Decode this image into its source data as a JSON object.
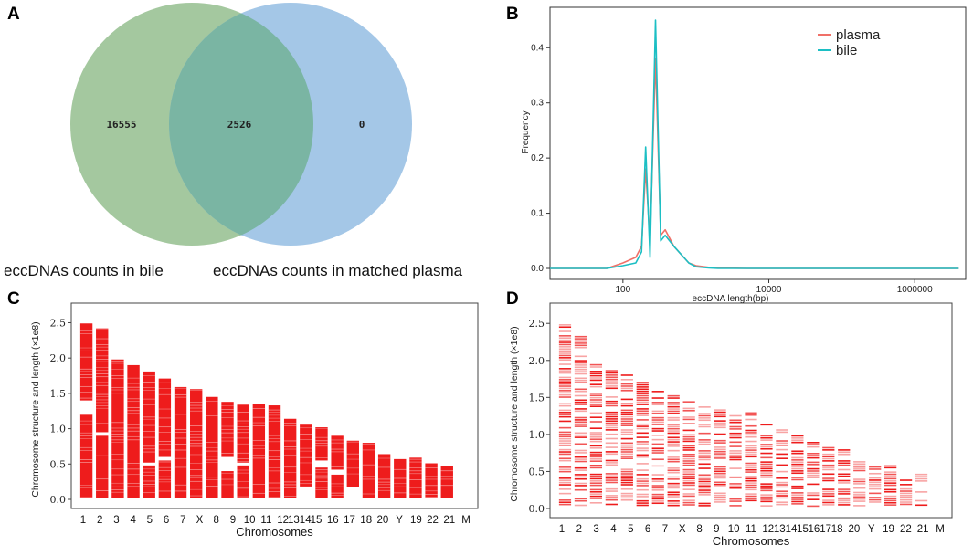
{
  "panels": {
    "a": {
      "letter": "A"
    },
    "b": {
      "letter": "B"
    },
    "c": {
      "letter": "C"
    },
    "d": {
      "letter": "D"
    }
  },
  "chart_data": [
    {
      "type": "venn",
      "title": "",
      "sets": [
        {
          "name": "eccDNAs counts in bile",
          "only": "16555",
          "color": "#9fc59a"
        },
        {
          "name": "eccDNAs counts in matched plasma",
          "only": "0",
          "color": "#9fc4e6"
        }
      ],
      "intersection": "2526",
      "overlap_color": "#7ab5a3"
    },
    {
      "type": "line",
      "xlabel": "eccDNA length(bp)",
      "ylabel": "Frequency",
      "xscale": "log10",
      "xlim": [
        10,
        5000000
      ],
      "ylim": [
        0,
        0.46
      ],
      "xticks": [
        {
          "v": 100,
          "label": "100"
        },
        {
          "v": 10000,
          "label": "10000"
        },
        {
          "v": 1000000,
          "label": "1000000"
        }
      ],
      "yticks": [
        {
          "v": 0,
          "label": "0.0"
        },
        {
          "v": 0.1,
          "label": "0.1"
        },
        {
          "v": 0.2,
          "label": "0.2"
        },
        {
          "v": 0.3,
          "label": "0.3"
        },
        {
          "v": 0.4,
          "label": "0.4"
        }
      ],
      "legend_position": "top-right",
      "series": [
        {
          "name": "plasma",
          "color": "#f07068",
          "x": [
            10,
            60,
            100,
            150,
            180,
            205,
            235,
            280,
            330,
            380,
            500,
            800,
            1000,
            1500,
            2000,
            5000,
            100000,
            4000000
          ],
          "y": [
            0,
            0,
            0.01,
            0.02,
            0.04,
            0.18,
            0.05,
            0.38,
            0.06,
            0.07,
            0.04,
            0.01,
            0.005,
            0.002,
            0.001,
            0,
            0,
            0
          ]
        },
        {
          "name": "bile",
          "color": "#1cbfc4",
          "x": [
            10,
            60,
            100,
            150,
            180,
            205,
            235,
            280,
            330,
            380,
            500,
            800,
            1000,
            1500,
            2000,
            5000,
            100000,
            4000000
          ],
          "y": [
            0,
            0,
            0.005,
            0.01,
            0.03,
            0.22,
            0.02,
            0.45,
            0.05,
            0.06,
            0.04,
            0.01,
            0.003,
            0.001,
            0,
            0,
            0,
            0
          ]
        }
      ]
    },
    {
      "type": "bar",
      "subtype": "chromosome-ideogram",
      "xlabel": "Chromosomes",
      "ylabel": "Chromosome structure and length (×1e8)",
      "ylim": [
        0,
        2.7
      ],
      "yticks": [
        {
          "v": 0,
          "label": "0.0"
        },
        {
          "v": 0.5,
          "label": "0.5"
        },
        {
          "v": 1.0,
          "label": "1.0"
        },
        {
          "v": 1.5,
          "label": "1.5"
        },
        {
          "v": 2.0,
          "label": "2.0"
        },
        {
          "v": 2.5,
          "label": "2.5"
        }
      ],
      "categories": [
        "1",
        "2",
        "3",
        "4",
        "5",
        "6",
        "7",
        "X",
        "8",
        "9",
        "10",
        "11",
        "12",
        "13",
        "14",
        "15",
        "16",
        "17",
        "18",
        "20",
        "Y",
        "19",
        "22",
        "21",
        "M"
      ],
      "tick_labels": [
        "1",
        "2",
        "3",
        "4",
        "5",
        "6",
        "7",
        "X",
        "8",
        "9",
        "10",
        "11",
        "12",
        "1314",
        "15",
        "16",
        "17",
        "18",
        "20",
        "Y",
        "19",
        "22",
        "21",
        "M"
      ],
      "values": [
        2.49,
        2.42,
        1.98,
        1.9,
        1.81,
        1.71,
        1.59,
        1.56,
        1.45,
        1.38,
        1.34,
        1.35,
        1.33,
        1.14,
        1.07,
        1.02,
        0.9,
        0.83,
        0.8,
        0.64,
        0.57,
        0.59,
        0.51,
        0.47,
        0.0
      ],
      "color": "#ee1c1c"
    },
    {
      "type": "bar",
      "subtype": "chromosome-ideogram",
      "xlabel": "Chromosomes",
      "ylabel": "Chromosome structure and length (×1e8)",
      "ylim": [
        0,
        2.7
      ],
      "yticks": [
        {
          "v": 0,
          "label": "0.0"
        },
        {
          "v": 0.5,
          "label": "0.5"
        },
        {
          "v": 1.0,
          "label": "1.0"
        },
        {
          "v": 1.5,
          "label": "1.5"
        },
        {
          "v": 2.0,
          "label": "2.0"
        },
        {
          "v": 2.5,
          "label": "2.5"
        }
      ],
      "categories": [
        "1",
        "2",
        "3",
        "4",
        "5",
        "6",
        "7",
        "X",
        "8",
        "9",
        "10",
        "11",
        "12",
        "13",
        "14",
        "15",
        "16",
        "17",
        "18",
        "20",
        "Y",
        "19",
        "22",
        "21",
        "M"
      ],
      "tick_labels": [
        "1",
        "2",
        "3",
        "4",
        "5",
        "6",
        "7",
        "X",
        "8",
        "9",
        "10",
        "11",
        "12",
        "1314",
        "15",
        "1617",
        "18",
        "20",
        "Y",
        "19",
        "22",
        "21",
        "M"
      ],
      "values": [
        2.49,
        2.42,
        1.98,
        1.9,
        1.81,
        1.71,
        1.59,
        1.56,
        1.45,
        1.38,
        1.34,
        1.35,
        1.33,
        1.14,
        1.07,
        1.02,
        0.9,
        0.83,
        0.8,
        0.64,
        0.57,
        0.59,
        0.51,
        0.47,
        0.0
      ],
      "color": "#ee1c1c"
    }
  ]
}
